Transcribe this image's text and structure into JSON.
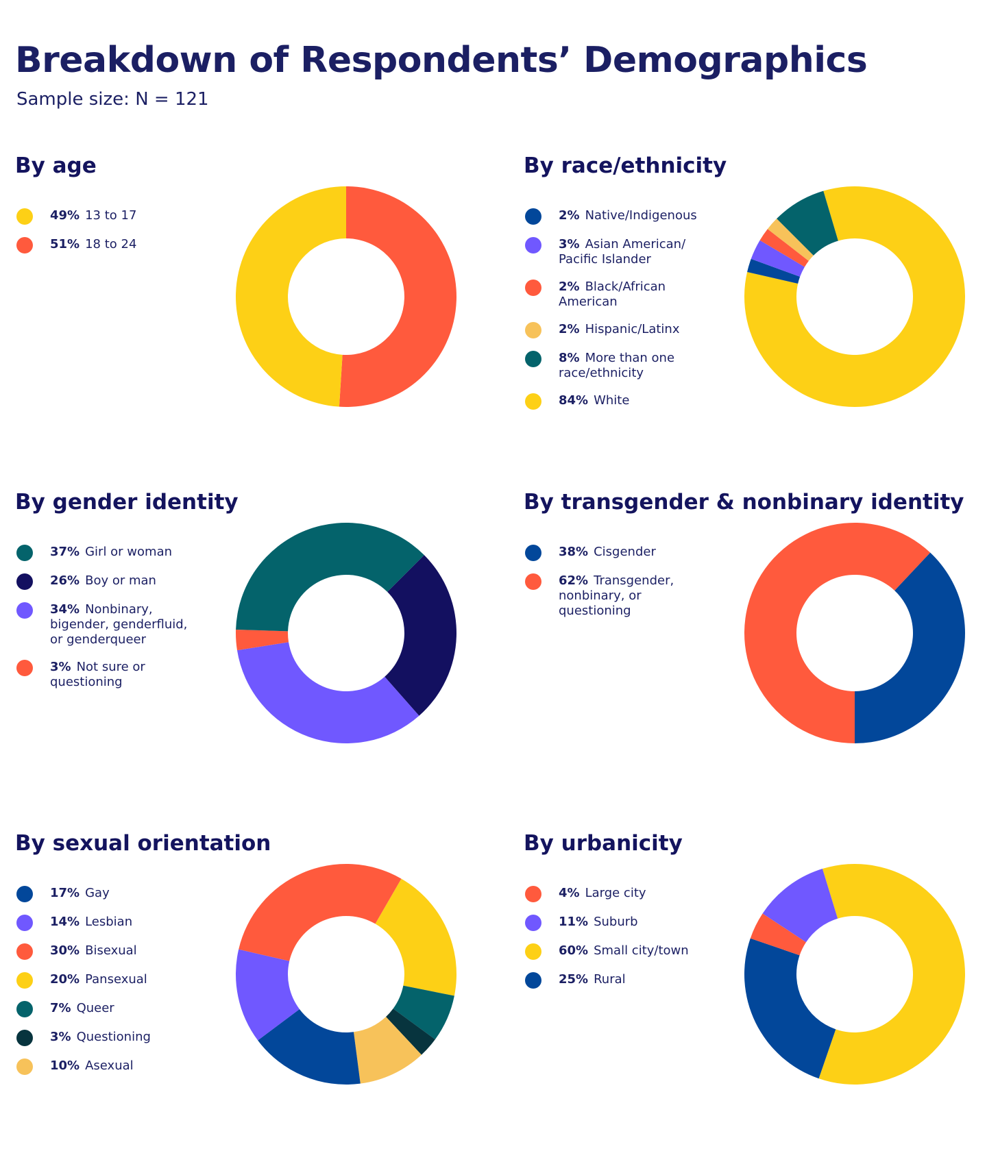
{
  "title": "Breakdown of Respondents’ Demographics",
  "subtitle": "Sample size: N = 121",
  "chart_data": [
    {
      "type": "pie",
      "variant": "donut",
      "title": "By age",
      "slices": [
        {
          "label": "13 to 17",
          "pct_label": "49%",
          "value": 49,
          "color": "#fdd016"
        },
        {
          "label": "18 to 24",
          "pct_label": "51%",
          "value": 51,
          "color": "#ff5a3d"
        }
      ]
    },
    {
      "type": "pie",
      "variant": "donut",
      "title": "By race/ethnicity",
      "slices": [
        {
          "label": "Native/Indigenous",
          "pct_label": "2%",
          "value": 2,
          "color": "#02479a"
        },
        {
          "label": "Asian American/ Pacific Islander",
          "pct_label": "3%",
          "value": 3,
          "color": "#7058ff"
        },
        {
          "label": "Black/African American",
          "pct_label": "2%",
          "value": 2,
          "color": "#ff5a3d"
        },
        {
          "label": "Hispanic/Latinx",
          "pct_label": "2%",
          "value": 2,
          "color": "#f7c25a"
        },
        {
          "label": "More than one race/ethnicity",
          "pct_label": "8%",
          "value": 8,
          "color": "#04636b"
        },
        {
          "label": "White",
          "pct_label": "84%",
          "value": 84,
          "color": "#fdd016"
        }
      ]
    },
    {
      "type": "pie",
      "variant": "donut",
      "title": "By gender identity",
      "slices": [
        {
          "label": "Girl or woman",
          "pct_label": "37%",
          "value": 37,
          "color": "#04636b"
        },
        {
          "label": "Boy or man",
          "pct_label": "26%",
          "value": 26,
          "color": "#131060"
        },
        {
          "label": "Nonbinary, bigender, genderfluid, or genderqueer",
          "pct_label": "34%",
          "value": 34,
          "color": "#7058ff"
        },
        {
          "label": "Not sure or questioning",
          "pct_label": "3%",
          "value": 3,
          "color": "#ff5a3d"
        }
      ]
    },
    {
      "type": "pie",
      "variant": "donut",
      "title": "By transgender & nonbinary identity",
      "slices": [
        {
          "label": "Cisgender",
          "pct_label": "38%",
          "value": 38,
          "color": "#02479a"
        },
        {
          "label": "Transgender, nonbinary, or questioning",
          "pct_label": "62%",
          "value": 62,
          "color": "#ff5a3d"
        }
      ]
    },
    {
      "type": "pie",
      "variant": "donut",
      "title": "By sexual orientation",
      "slices": [
        {
          "label": "Gay",
          "pct_label": "17%",
          "value": 17,
          "color": "#02479a"
        },
        {
          "label": "Lesbian",
          "pct_label": "14%",
          "value": 14,
          "color": "#7058ff"
        },
        {
          "label": "Bisexual",
          "pct_label": "30%",
          "value": 30,
          "color": "#ff5a3d"
        },
        {
          "label": "Pansexual",
          "pct_label": "20%",
          "value": 20,
          "color": "#fdd016"
        },
        {
          "label": "Queer",
          "pct_label": "7%",
          "value": 7,
          "color": "#04636b"
        },
        {
          "label": "Questioning",
          "pct_label": "3%",
          "value": 3,
          "color": "#07343e"
        },
        {
          "label": "Asexual",
          "pct_label": "10%",
          "value": 10,
          "color": "#f7c25a"
        }
      ]
    },
    {
      "type": "pie",
      "variant": "donut",
      "title": "By urbanicity",
      "slices": [
        {
          "label": "Large city",
          "pct_label": "4%",
          "value": 4,
          "color": "#ff5a3d"
        },
        {
          "label": "Suburb",
          "pct_label": "11%",
          "value": 11,
          "color": "#7058ff"
        },
        {
          "label": "Small city/town",
          "pct_label": "60%",
          "value": 60,
          "color": "#fdd016"
        },
        {
          "label": "Rural",
          "pct_label": "25%",
          "value": 25,
          "color": "#02479a"
        }
      ]
    }
  ]
}
